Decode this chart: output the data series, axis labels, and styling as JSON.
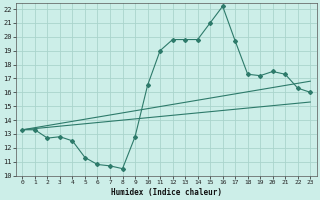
{
  "xlabel": "Humidex (Indice chaleur)",
  "xlim": [
    -0.5,
    23.5
  ],
  "ylim": [
    10,
    22.4
  ],
  "yticks": [
    10,
    11,
    12,
    13,
    14,
    15,
    16,
    17,
    18,
    19,
    20,
    21,
    22
  ],
  "xticks": [
    0,
    1,
    2,
    3,
    4,
    5,
    6,
    7,
    8,
    9,
    10,
    11,
    12,
    13,
    14,
    15,
    16,
    17,
    18,
    19,
    20,
    21,
    22,
    23
  ],
  "bg_color": "#cceee8",
  "grid_color": "#aad4cc",
  "line_color": "#2d7a6a",
  "line1_x": [
    0,
    1,
    2,
    3,
    4,
    5,
    6,
    7,
    8,
    9,
    10,
    11,
    12,
    13,
    14,
    15,
    16,
    17,
    18,
    19,
    20,
    21,
    22,
    23
  ],
  "line1_y": [
    13.3,
    13.3,
    12.7,
    12.8,
    12.5,
    11.3,
    10.8,
    10.7,
    10.5,
    12.8,
    16.5,
    19.0,
    19.8,
    19.8,
    19.8,
    21.0,
    22.2,
    19.7,
    17.3,
    17.2,
    17.5,
    17.3,
    16.3,
    16.0
  ],
  "line2_x": [
    0,
    23
  ],
  "line2_y": [
    13.3,
    16.8
  ],
  "line3_x": [
    0,
    23
  ],
  "line3_y": [
    13.3,
    15.3
  ]
}
